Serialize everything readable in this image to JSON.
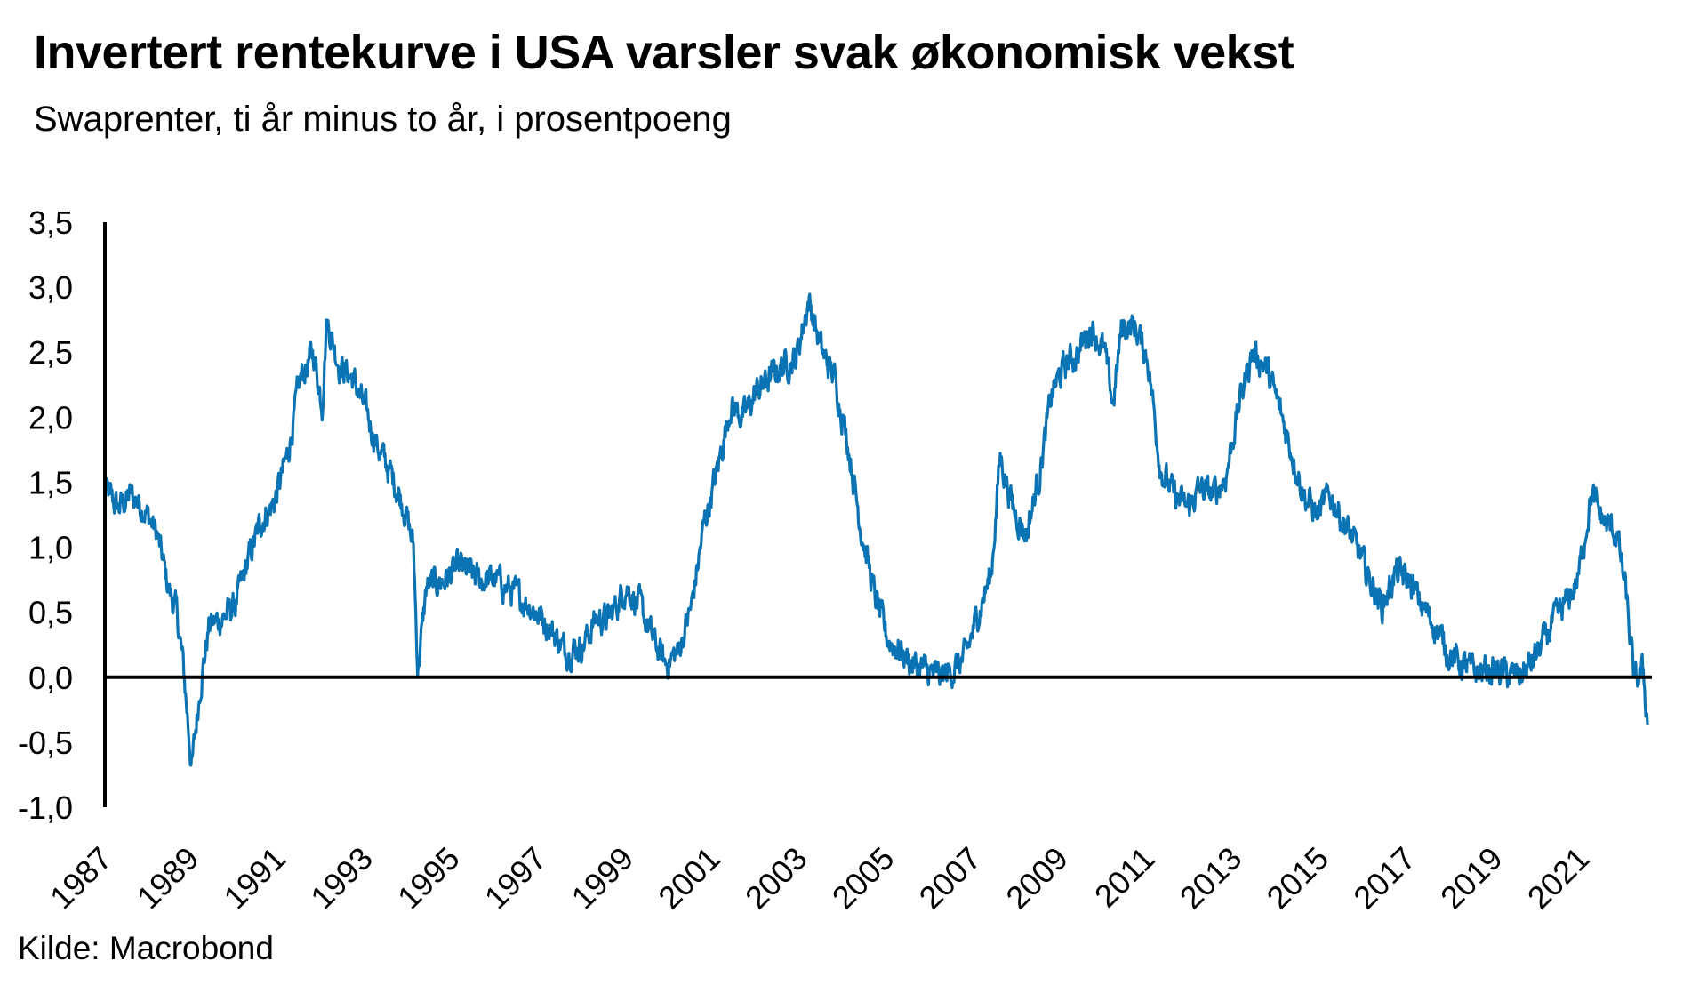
{
  "title": "Invertert rentekurve i USA varsler svak økonomisk vekst",
  "subtitle": "Swaprenter, ti år minus to år, i prosentpoeng",
  "source": "Kilde: Macrobond",
  "colors": {
    "series": "#0a73b3",
    "axis": "#000000"
  },
  "chart_data": {
    "type": "line",
    "title": "Invertert rentekurve i USA varsler svak økonomisk vekst",
    "subtitle": "Swaprenter, ti år minus to år, i prosentpoeng",
    "xlabel": "",
    "ylabel": "",
    "ylim": [
      -1.0,
      3.5
    ],
    "xlim": [
      1987.0,
      2022.6
    ],
    "grid": false,
    "legend": "none",
    "y_ticks": [
      -1.0,
      -0.5,
      0.0,
      0.5,
      1.0,
      1.5,
      2.0,
      2.5,
      3.0,
      3.5
    ],
    "y_tick_labels": [
      "-1,0",
      "-0,5",
      "0,0",
      "0,5",
      "1,0",
      "1,5",
      "2,0",
      "2,5",
      "3,0",
      "3,5"
    ],
    "x_tick_labels": [
      "1987",
      "1989",
      "1991",
      "1993",
      "1995",
      "1997",
      "1999",
      "2001",
      "2003",
      "2005",
      "2007",
      "2009",
      "2011",
      "2013",
      "2015",
      "2017",
      "2019",
      "2021"
    ],
    "series": [
      {
        "x": [
          1987.0,
          1987.3,
          1987.6,
          1987.9,
          1988.2,
          1988.45,
          1988.65,
          1988.8,
          1989.0,
          1989.2,
          1989.4,
          1989.7,
          1990.0,
          1990.3,
          1990.6,
          1990.9,
          1991.2,
          1991.5,
          1991.8,
          1992.0,
          1992.1,
          1992.4,
          1992.7,
          1993.0,
          1993.3,
          1993.6,
          1993.9,
          1994.1,
          1994.2,
          1994.4,
          1994.8,
          1995.2,
          1995.6,
          1996.0,
          1996.4,
          1996.8,
          1997.2,
          1997.6,
          1998.0,
          1998.3,
          1998.6,
          1999.0,
          1999.3,
          1999.6,
          1999.9,
          2000.2,
          2000.5,
          2000.8,
          2001.1,
          2001.4,
          2001.7,
          2002.0,
          2002.3,
          2002.6,
          2002.9,
          2003.2,
          2003.5,
          2003.8,
          2004.1,
          2004.4,
          2004.7,
          2005.0,
          2005.3,
          2005.6,
          2005.9,
          2006.2,
          2006.5,
          2006.8,
          2007.1,
          2007.4,
          2007.6,
          2007.9,
          2008.2,
          2008.5,
          2008.8,
          2009.1,
          2009.4,
          2009.7,
          2010.0,
          2010.2,
          2010.4,
          2010.7,
          2011.0,
          2011.3,
          2011.6,
          2011.9,
          2012.2,
          2012.5,
          2012.8,
          2013.1,
          2013.4,
          2013.7,
          2014.0,
          2014.3,
          2014.6,
          2014.9,
          2015.2,
          2015.5,
          2015.8,
          2016.1,
          2016.4,
          2016.7,
          2017.0,
          2017.3,
          2017.6,
          2017.9,
          2018.2,
          2018.5,
          2018.8,
          2019.1,
          2019.4,
          2019.7,
          2020.0,
          2020.3,
          2020.6,
          2020.9,
          2021.2,
          2021.5,
          2021.8,
          2022.0,
          2022.2,
          2022.4,
          2022.5
        ],
        "y": [
          1.45,
          1.3,
          1.4,
          1.3,
          1.1,
          0.7,
          0.5,
          0.1,
          -0.7,
          -0.05,
          0.4,
          0.45,
          0.55,
          0.9,
          1.2,
          1.35,
          1.7,
          2.3,
          2.5,
          2.1,
          2.75,
          2.4,
          2.3,
          2.05,
          1.75,
          1.55,
          1.3,
          1.0,
          0.05,
          0.7,
          0.75,
          0.85,
          0.75,
          0.75,
          0.65,
          0.55,
          0.4,
          0.2,
          0.25,
          0.45,
          0.45,
          0.7,
          0.55,
          0.3,
          0.1,
          0.2,
          0.55,
          1.2,
          1.6,
          2.1,
          2.0,
          2.2,
          2.3,
          2.4,
          2.45,
          2.9,
          2.5,
          2.3,
          1.8,
          1.15,
          0.65,
          0.3,
          0.2,
          0.1,
          0.05,
          0.0,
          0.05,
          0.15,
          0.5,
          0.8,
          1.7,
          1.3,
          1.1,
          1.55,
          2.2,
          2.4,
          2.5,
          2.7,
          2.5,
          2.1,
          2.7,
          2.7,
          2.45,
          1.6,
          1.4,
          1.3,
          1.45,
          1.4,
          1.55,
          2.1,
          2.5,
          2.4,
          2.1,
          1.75,
          1.4,
          1.25,
          1.4,
          1.2,
          1.0,
          0.75,
          0.55,
          0.8,
          0.75,
          0.55,
          0.4,
          0.2,
          0.1,
          0.05,
          0.05,
          0.05,
          0.0,
          0.05,
          0.2,
          0.4,
          0.55,
          0.75,
          1.4,
          1.2,
          1.1,
          0.65,
          -0.05,
          0.05,
          -0.35
        ]
      }
    ]
  }
}
